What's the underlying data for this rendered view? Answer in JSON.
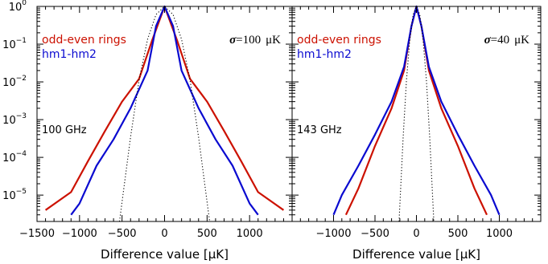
{
  "chart_data": [
    {
      "type": "line",
      "panel": "left",
      "frequency_label": "100 GHz",
      "sigma_symbol": "σ",
      "sigma_value": "=100",
      "sigma_unit": "μK",
      "xlabel": "Difference value [μK]",
      "ylabel": "",
      "xlim": [
        -1500,
        1500
      ],
      "ylim": [
        2e-06,
        1.0
      ],
      "y_scale": "log",
      "x_ticks": [
        -1500,
        -1000,
        -500,
        0,
        500,
        1000
      ],
      "x_tick_labels": [
        "−1500",
        "−1000",
        "−500",
        "0",
        "500",
        "1000"
      ],
      "y_ticks": [
        1e-05,
        0.0001,
        0.001,
        0.01,
        0.1,
        1
      ],
      "y_tick_labels": [
        {
          "base": "10",
          "exp": "−5"
        },
        {
          "base": "10",
          "exp": "−4"
        },
        {
          "base": "10",
          "exp": "−3"
        },
        {
          "base": "10",
          "exp": "−2"
        },
        {
          "base": "10",
          "exp": "−1"
        },
        {
          "base": "10",
          "exp": "0"
        }
      ],
      "legend_position": "top-left",
      "series": [
        {
          "name": "odd-even rings",
          "color": "#cc1100",
          "style": "solid",
          "x": [
            -1400,
            -1100,
            -900,
            -700,
            -500,
            -300,
            -150,
            0,
            150,
            300,
            500,
            700,
            900,
            1100,
            1400
          ],
          "y": [
            4e-06,
            1.2e-05,
            8e-05,
            0.0005,
            0.003,
            0.012,
            0.12,
            1,
            0.12,
            0.012,
            0.003,
            0.0005,
            8e-05,
            1.2e-05,
            4e-06
          ]
        },
        {
          "name": "hm1-hm2",
          "color": "#0a0ad0",
          "style": "solid",
          "x": [
            -1100,
            -1000,
            -800,
            -600,
            -400,
            -200,
            -100,
            0,
            100,
            200,
            400,
            600,
            800,
            1000,
            1100
          ],
          "y": [
            3e-06,
            6e-06,
            6e-05,
            0.0003,
            0.002,
            0.02,
            0.3,
            1,
            0.3,
            0.02,
            0.002,
            0.0003,
            6e-05,
            6e-06,
            3e-06
          ]
        },
        {
          "name": "",
          "color": "#000000",
          "style": "dotted",
          "x": [
            -530,
            -400,
            -300,
            -200,
            -100,
            0,
            100,
            200,
            300,
            400,
            530
          ],
          "y": [
            2e-06,
            0.00034,
            0.011,
            0.135,
            0.61,
            1,
            0.61,
            0.135,
            0.011,
            0.00034,
            2e-06
          ]
        }
      ]
    },
    {
      "type": "line",
      "panel": "right",
      "frequency_label": "143 GHz",
      "sigma_symbol": "σ",
      "sigma_value": "=40",
      "sigma_unit": "μK",
      "xlabel": "Difference value [μK]",
      "ylabel": "",
      "xlim": [
        -1500,
        1500
      ],
      "ylim": [
        2e-06,
        1.0
      ],
      "y_scale": "log",
      "x_ticks": [
        -1000,
        -500,
        0,
        500,
        1000
      ],
      "x_tick_labels": [
        "−1000",
        "−500",
        "0",
        "500",
        "1000"
      ],
      "legend_position": "top-left",
      "series": [
        {
          "name": "odd-even rings",
          "color": "#cc1100",
          "style": "solid",
          "x": [
            -850,
            -700,
            -500,
            -300,
            -150,
            -60,
            0,
            60,
            150,
            300,
            500,
            700,
            850
          ],
          "y": [
            3e-06,
            1.5e-05,
            0.0002,
            0.002,
            0.02,
            0.3,
            1,
            0.3,
            0.02,
            0.002,
            0.0002,
            1.5e-05,
            3e-06
          ]
        },
        {
          "name": "hm1-hm2",
          "color": "#0a0ad0",
          "style": "solid",
          "x": [
            -1000,
            -900,
            -700,
            -500,
            -300,
            -150,
            -60,
            0,
            60,
            150,
            300,
            500,
            700,
            900,
            1000
          ],
          "y": [
            3e-06,
            1e-05,
            6e-05,
            0.0004,
            0.003,
            0.025,
            0.3,
            1,
            0.3,
            0.025,
            0.003,
            0.0004,
            6e-05,
            1e-05,
            3e-06
          ]
        },
        {
          "name": "",
          "color": "#000000",
          "style": "dotted",
          "x": [
            -210,
            -160,
            -120,
            -80,
            -40,
            0,
            40,
            80,
            120,
            160,
            210
          ],
          "y": [
            2e-06,
            0.00034,
            0.011,
            0.135,
            0.61,
            1,
            0.61,
            0.135,
            0.011,
            0.00034,
            2e-06
          ]
        }
      ]
    }
  ]
}
